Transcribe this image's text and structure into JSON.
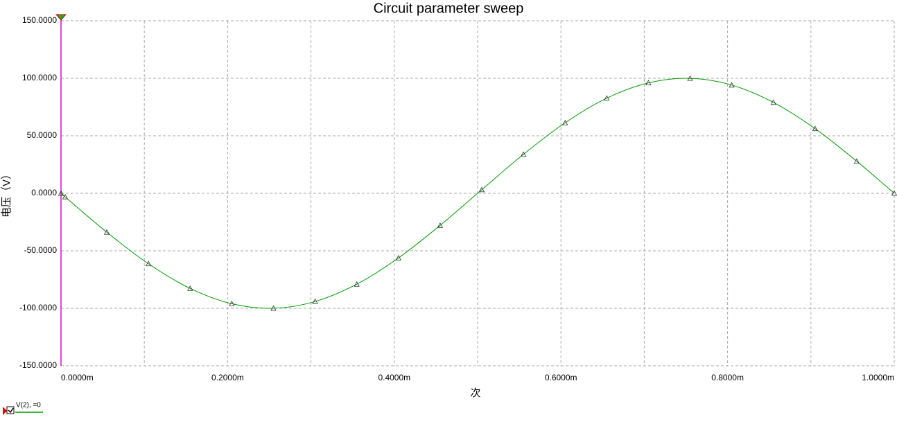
{
  "chart_data": {
    "type": "line",
    "title": "Circuit parameter sweep",
    "x_label": "次",
    "y_label": "电压（V）",
    "xlim": [
      0,
      1
    ],
    "ylim": [
      -150,
      150
    ],
    "xticks": [
      {
        "value": 0,
        "label": "0.0000m"
      },
      {
        "value": 0.2,
        "label": "0.2000m"
      },
      {
        "value": 0.4,
        "label": "0.4000m"
      },
      {
        "value": 0.6,
        "label": "0.6000m"
      },
      {
        "value": 0.8,
        "label": "0.8000m"
      },
      {
        "value": 1,
        "label": "1.0000m"
      }
    ],
    "yticks": [
      {
        "value": -150,
        "label": "-150.0000"
      },
      {
        "value": -100,
        "label": "-100.0000"
      },
      {
        "value": -50,
        "label": "-50.0000"
      },
      {
        "value": 0,
        "label": "0.0000"
      },
      {
        "value": 50,
        "label": "50.0000"
      },
      {
        "value": 100,
        "label": "100.0000"
      },
      {
        "value": 150,
        "label": "150.0000"
      }
    ],
    "grid": true,
    "series": [
      {
        "name": "V(2), =0",
        "color": "#009900",
        "x": [
          0,
          0.005,
          0.055,
          0.105,
          0.155,
          0.205,
          0.255,
          0.305,
          0.355,
          0.405,
          0.455,
          0.505,
          0.555,
          0.605,
          0.655,
          0.705,
          0.755,
          0.805,
          0.855,
          0.905,
          0.955,
          1
        ],
        "values": [
          0,
          -3.14,
          -33.87,
          -61.29,
          -82.71,
          -96.03,
          -99.95,
          -94.09,
          -79.02,
          -56.21,
          -27.9,
          3.14,
          33.87,
          61.29,
          82.71,
          96.03,
          99.95,
          94.09,
          79.02,
          56.21,
          27.9,
          0
        ]
      }
    ]
  }
}
